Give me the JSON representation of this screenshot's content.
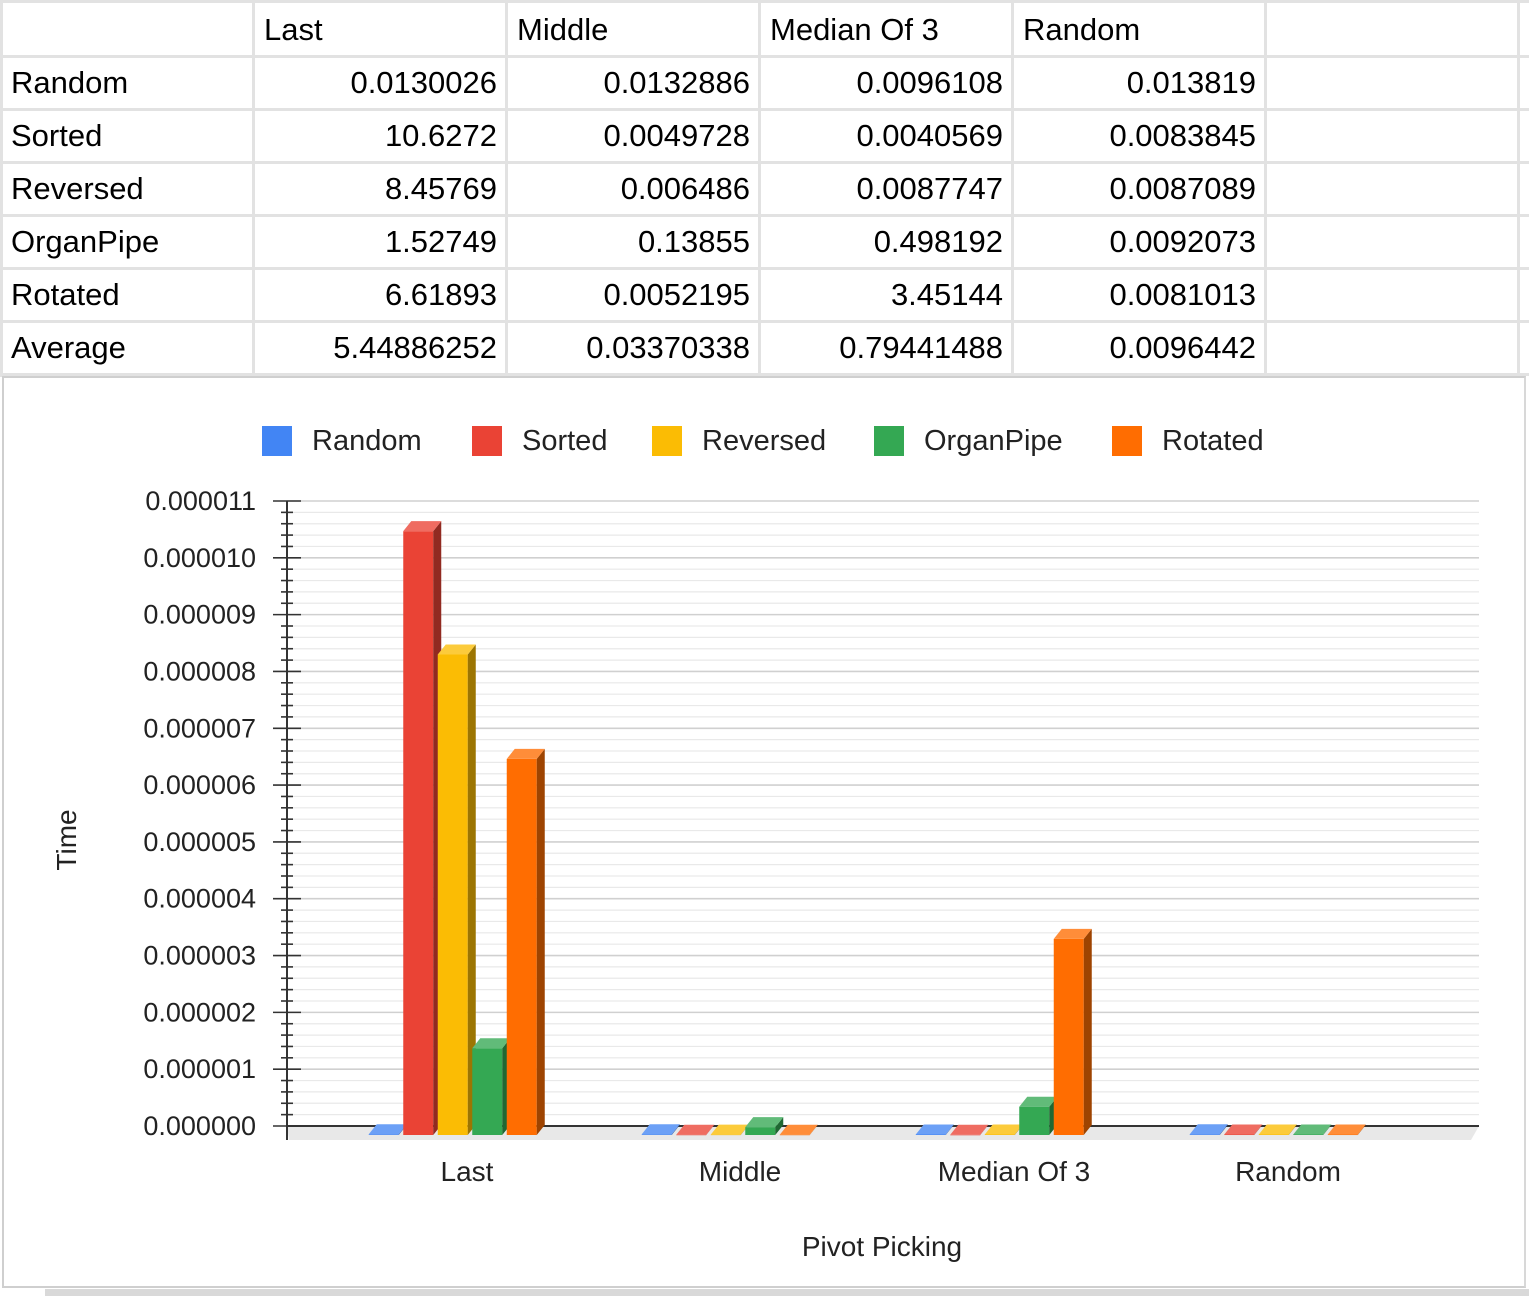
{
  "table": {
    "columns": [
      "",
      "Last",
      "Middle",
      "Median Of 3",
      "Random"
    ],
    "rows": [
      {
        "label": "Random",
        "values": [
          "0.0130026",
          "0.0132886",
          "0.0096108",
          "0.013819"
        ]
      },
      {
        "label": "Sorted",
        "values": [
          "10.6272",
          "0.0049728",
          "0.0040569",
          "0.0083845"
        ]
      },
      {
        "label": "Reversed",
        "values": [
          "8.45769",
          "0.006486",
          "0.0087747",
          "0.0087089"
        ]
      },
      {
        "label": "OrganPipe",
        "values": [
          "1.52749",
          "0.13855",
          "0.498192",
          "0.0092073"
        ]
      },
      {
        "label": "Rotated",
        "values": [
          "6.61893",
          "0.0052195",
          "3.45144",
          "0.0081013"
        ]
      },
      {
        "label": "Average",
        "values": [
          "5.44886252",
          "0.03370338",
          "0.79441488",
          "0.0096442"
        ]
      }
    ]
  },
  "chart_data": {
    "type": "bar",
    "style": "3d-column",
    "categories": [
      "Last",
      "Middle",
      "Median Of 3",
      "Random"
    ],
    "series": [
      {
        "name": "Random",
        "color": "#4285f4",
        "values": [
          1.3e-08,
          1.33e-08,
          9.6e-09,
          1.38e-08
        ]
      },
      {
        "name": "Sorted",
        "color": "#ea4335",
        "values": [
          1.06272e-05,
          5e-09,
          4e-09,
          8.4e-09
        ]
      },
      {
        "name": "Reversed",
        "color": "#fbbc04",
        "values": [
          8.4577e-06,
          6.5e-09,
          8.8e-09,
          8.7e-09
        ]
      },
      {
        "name": "OrganPipe",
        "color": "#34a853",
        "values": [
          1.5275e-06,
          1.386e-07,
          4.982e-07,
          9.2e-09
        ]
      },
      {
        "name": "Rotated",
        "color": "#ff6d01",
        "values": [
          6.6189e-06,
          5.2e-09,
          3.4514e-06,
          8.1e-09
        ]
      }
    ],
    "xlabel": "Pivot Picking",
    "ylabel": "Time",
    "ylim": [
      0,
      1.1e-05
    ],
    "yticks": [
      "0.000000",
      "0.000001",
      "0.000002",
      "0.000003",
      "0.000004",
      "0.000005",
      "0.000006",
      "0.000007",
      "0.000008",
      "0.000009",
      "0.000010",
      "0.000011"
    ],
    "grid": true,
    "legend": "top"
  }
}
